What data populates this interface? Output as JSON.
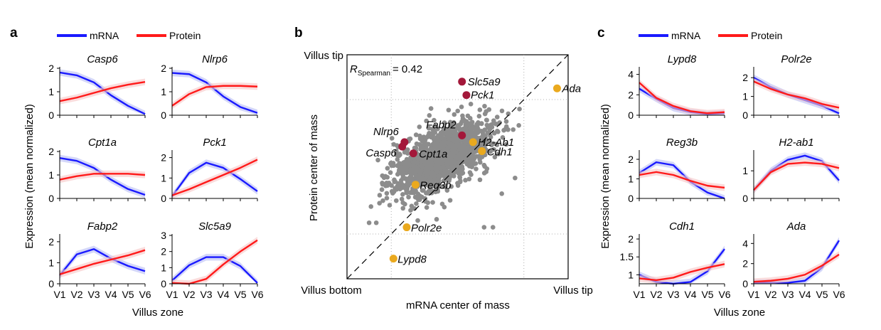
{
  "panel_letters": {
    "a": "a",
    "b": "b",
    "c": "c"
  },
  "colors": {
    "mrna": "#1a1aff",
    "protein": "#ff1a1a",
    "mrna_band": "#b8bdf5",
    "protein_band": "#f7c4c4",
    "title_a": "#8b1a3a",
    "title_c": "#e8a820",
    "scatter_grey": "#8c8c8c",
    "marker_red": "#a3183a",
    "marker_yellow": "#eaa91e",
    "spearman_text": "#a6a6a6"
  },
  "legend": {
    "mrna": "mRNA",
    "protein": "Protein"
  },
  "ylabel": "Expression (mean normalized)",
  "xlabel": "Villus zone",
  "zones": [
    "V1",
    "V2",
    "V3",
    "V4",
    "V5",
    "V6"
  ],
  "scatter": {
    "xlabel": "mRNA center of mass",
    "ylabel": "Protein center of mass",
    "tl_label": "Villus tip",
    "bl_label": "Villus bottom",
    "br_label": "Villus tip",
    "spearman_R": "R",
    "spearman_sub": "Spearman",
    "spearman_val": "= 0.42"
  },
  "chart_data": [
    {
      "panel": "a",
      "type": "line",
      "title": "Casp6",
      "ylim": [
        0,
        2
      ],
      "yticks": [
        0,
        1,
        2
      ],
      "series": [
        {
          "name": "mRNA",
          "values": [
            1.82,
            1.7,
            1.4,
            0.85,
            0.4,
            0.05
          ]
        },
        {
          "name": "Protein",
          "values": [
            0.6,
            0.75,
            0.95,
            1.15,
            1.3,
            1.42
          ]
        }
      ]
    },
    {
      "panel": "a",
      "type": "line",
      "title": "Nlrp6",
      "ylim": [
        0,
        2
      ],
      "yticks": [
        0,
        1,
        2
      ],
      "series": [
        {
          "name": "mRNA",
          "values": [
            1.8,
            1.75,
            1.4,
            0.8,
            0.35,
            0.1
          ]
        },
        {
          "name": "Protein",
          "values": [
            0.4,
            0.9,
            1.2,
            1.25,
            1.25,
            1.22
          ]
        }
      ]
    },
    {
      "panel": "a",
      "type": "line",
      "title": "Cpt1a",
      "ylim": [
        0,
        2
      ],
      "yticks": [
        0,
        1,
        2
      ],
      "series": [
        {
          "name": "mRNA",
          "values": [
            1.72,
            1.6,
            1.3,
            0.8,
            0.4,
            0.15
          ]
        },
        {
          "name": "Protein",
          "values": [
            0.8,
            0.95,
            1.05,
            1.05,
            1.05,
            1.0
          ]
        }
      ]
    },
    {
      "panel": "a",
      "type": "line",
      "title": "Pck1",
      "ylim": [
        0,
        2.3
      ],
      "yticks": [
        0,
        1,
        2
      ],
      "series": [
        {
          "name": "mRNA",
          "values": [
            0.1,
            1.25,
            1.75,
            1.5,
            0.95,
            0.35
          ]
        },
        {
          "name": "Protein",
          "values": [
            0.15,
            0.45,
            0.8,
            1.15,
            1.5,
            1.9
          ]
        }
      ]
    },
    {
      "panel": "a",
      "type": "line",
      "title": "Fabp2",
      "ylim": [
        0,
        2.3
      ],
      "yticks": [
        0,
        1,
        2
      ],
      "series": [
        {
          "name": "mRNA",
          "values": [
            0.4,
            1.4,
            1.65,
            1.2,
            0.85,
            0.6
          ]
        },
        {
          "name": "Protein",
          "values": [
            0.45,
            0.7,
            0.95,
            1.15,
            1.35,
            1.6
          ]
        }
      ]
    },
    {
      "panel": "a",
      "type": "line",
      "title": "Slc5a9",
      "ylim": [
        0,
        3
      ],
      "yticks": [
        0,
        1,
        2,
        3
      ],
      "series": [
        {
          "name": "mRNA",
          "values": [
            0.2,
            1.15,
            1.65,
            1.65,
            1.1,
            0.05
          ]
        },
        {
          "name": "Protein",
          "values": [
            0.05,
            0.0,
            0.3,
            1.2,
            2.0,
            2.7
          ]
        }
      ]
    },
    {
      "panel": "c",
      "type": "line",
      "title": "Lypd8",
      "ylim": [
        0,
        4.6
      ],
      "yticks": [
        0,
        2,
        4
      ],
      "series": [
        {
          "name": "mRNA",
          "values": [
            2.6,
            1.6,
            0.7,
            0.3,
            0.1,
            0.2
          ]
        },
        {
          "name": "Protein",
          "values": [
            3.2,
            1.7,
            0.9,
            0.4,
            0.2,
            0.3
          ]
        }
      ]
    },
    {
      "panel": "c",
      "type": "line",
      "title": "Polr2e",
      "ylim": [
        0,
        2.5
      ],
      "yticks": [
        0,
        1,
        2
      ],
      "series": [
        {
          "name": "mRNA",
          "values": [
            2.0,
            1.5,
            1.1,
            0.8,
            0.5,
            0.1
          ]
        },
        {
          "name": "Protein",
          "values": [
            1.8,
            1.4,
            1.1,
            0.9,
            0.6,
            0.4
          ]
        }
      ]
    },
    {
      "panel": "c",
      "type": "line",
      "title": "Reg3b",
      "ylim": [
        0,
        2.4
      ],
      "yticks": [
        0,
        1,
        2
      ],
      "series": [
        {
          "name": "mRNA",
          "values": [
            1.3,
            1.85,
            1.7,
            0.85,
            0.3,
            0.0
          ]
        },
        {
          "name": "Protein",
          "values": [
            1.2,
            1.35,
            1.2,
            0.9,
            0.65,
            0.55
          ]
        }
      ]
    },
    {
      "panel": "c",
      "type": "line",
      "title": "H2-ab1",
      "ylim": [
        0,
        1.7
      ],
      "yticks": [
        0,
        1
      ],
      "series": [
        {
          "name": "mRNA",
          "values": [
            0.3,
            1.0,
            1.4,
            1.55,
            1.35,
            0.65
          ]
        },
        {
          "name": "Protein",
          "values": [
            0.3,
            0.95,
            1.25,
            1.3,
            1.25,
            1.1
          ]
        }
      ]
    },
    {
      "panel": "c",
      "type": "line",
      "title": "Cdh1",
      "ylim": [
        0.75,
        2.1
      ],
      "yticks": [
        1,
        1.5,
        2
      ],
      "series": [
        {
          "name": "mRNA",
          "values": [
            1.0,
            0.8,
            0.75,
            0.8,
            1.1,
            1.72
          ]
        },
        {
          "name": "Protein",
          "values": [
            0.9,
            0.85,
            0.92,
            1.08,
            1.2,
            1.3
          ]
        }
      ]
    },
    {
      "panel": "c",
      "type": "line",
      "title": "Ada",
      "ylim": [
        0,
        4.8
      ],
      "yticks": [
        0,
        2,
        4
      ],
      "series": [
        {
          "name": "mRNA",
          "values": [
            0.1,
            0.1,
            0.1,
            0.3,
            1.6,
            4.3
          ]
        },
        {
          "name": "Protein",
          "values": [
            0.2,
            0.3,
            0.5,
            0.9,
            1.8,
            2.9
          ]
        }
      ]
    },
    {
      "panel": "b",
      "type": "scatter",
      "xlabel": "mRNA center of mass",
      "ylabel": "Protein center of mass",
      "xlim": [
        0,
        1
      ],
      "ylim": [
        0,
        1
      ],
      "points": [
        {
          "label": "Slc5a9",
          "x": 0.52,
          "y": 0.88,
          "color": "red"
        },
        {
          "label": "Pck1",
          "x": 0.54,
          "y": 0.82,
          "color": "red"
        },
        {
          "label": "Fabp2",
          "x": 0.52,
          "y": 0.64,
          "color": "red"
        },
        {
          "label": "Nlrp6",
          "x": 0.26,
          "y": 0.61,
          "color": "red"
        },
        {
          "label": "Casp6",
          "x": 0.25,
          "y": 0.59,
          "color": "red"
        },
        {
          "label": "Cpt1a",
          "x": 0.3,
          "y": 0.56,
          "color": "red"
        },
        {
          "label": "Ada",
          "x": 0.95,
          "y": 0.85,
          "color": "yellow"
        },
        {
          "label": "H2-Ab1",
          "x": 0.57,
          "y": 0.61,
          "color": "yellow"
        },
        {
          "label": "Cdh1",
          "x": 0.61,
          "y": 0.57,
          "color": "yellow"
        },
        {
          "label": "Reg3b",
          "x": 0.31,
          "y": 0.42,
          "color": "yellow"
        },
        {
          "label": "Polr2e",
          "x": 0.27,
          "y": 0.23,
          "color": "yellow"
        },
        {
          "label": "Lypd8",
          "x": 0.21,
          "y": 0.09,
          "color": "yellow"
        }
      ]
    }
  ]
}
